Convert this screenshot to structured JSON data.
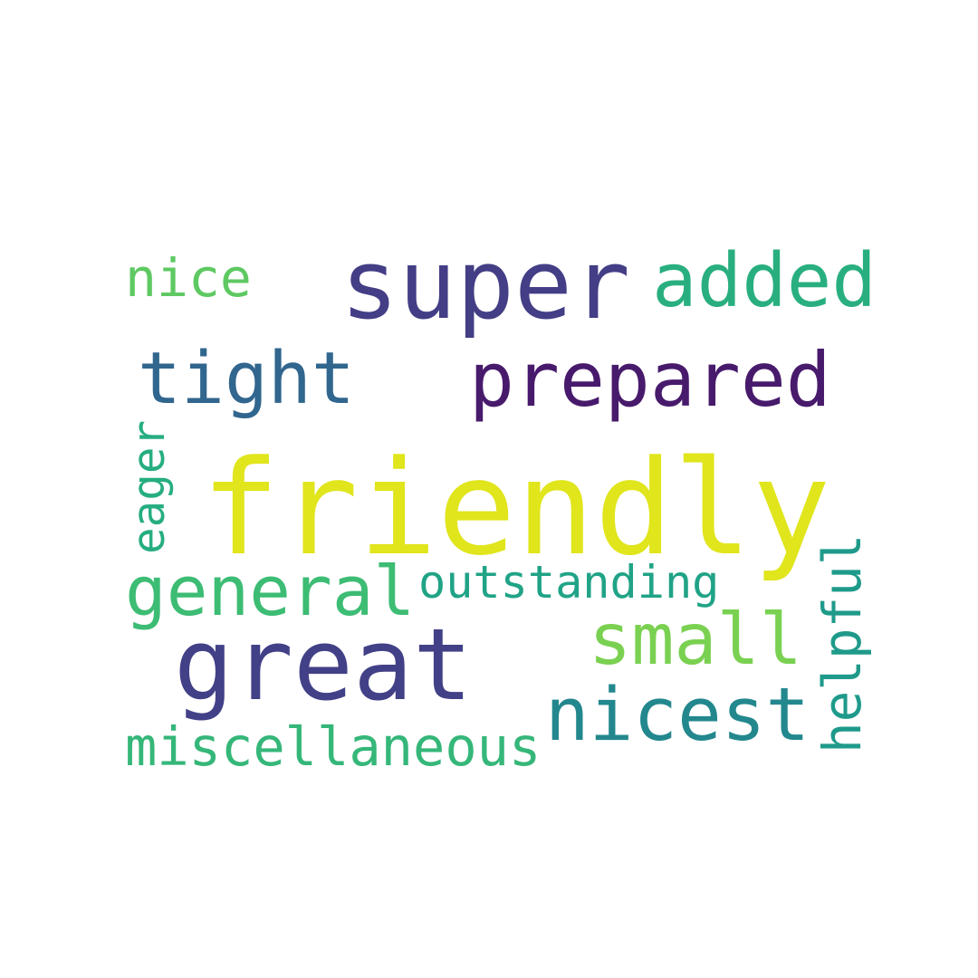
{
  "words": [
    {
      "id": "friendly",
      "text": "friendly",
      "color": "#e0e51c"
    },
    {
      "id": "super",
      "text": "super",
      "color": "#433e85"
    },
    {
      "id": "great",
      "text": "great",
      "color": "#424086"
    },
    {
      "id": "prepared",
      "text": "prepared",
      "color": "#481a6c"
    },
    {
      "id": "tight",
      "text": "tight",
      "color": "#31668e"
    },
    {
      "id": "added",
      "text": "added",
      "color": "#29af7f"
    },
    {
      "id": "nicest",
      "text": "nicest",
      "color": "#23888e"
    },
    {
      "id": "general",
      "text": "general",
      "color": "#3dbc74"
    },
    {
      "id": "small",
      "text": "small",
      "color": "#7ad151"
    },
    {
      "id": "helpful",
      "text": "helpful",
      "color": "#1f9a8a"
    },
    {
      "id": "nice",
      "text": "nice",
      "color": "#5ec962"
    },
    {
      "id": "miscellaneous",
      "text": "miscellaneous",
      "color": "#35b779"
    },
    {
      "id": "outstanding",
      "text": "outstanding",
      "color": "#20a386"
    },
    {
      "id": "eager",
      "text": "eager",
      "color": "#26ad81"
    }
  ]
}
